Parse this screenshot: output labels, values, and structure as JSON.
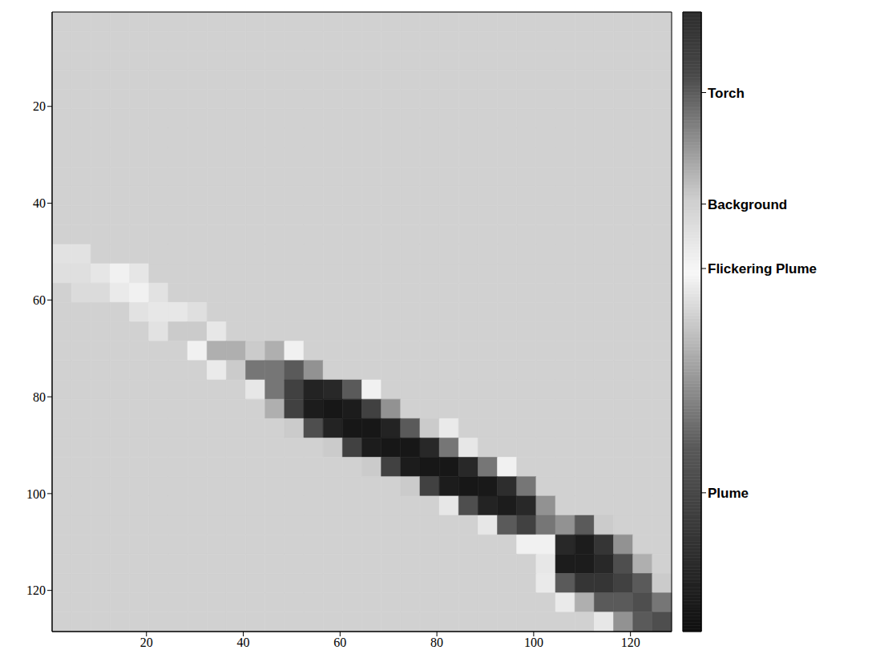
{
  "chart_data": {
    "type": "heatmap",
    "xlim": [
      0.5,
      128.5
    ],
    "ylim": [
      128.5,
      0.5
    ],
    "xticks": [
      20,
      40,
      60,
      80,
      100,
      120
    ],
    "yticks": [
      20,
      40,
      60,
      80,
      100,
      120
    ],
    "x_bins": [
      0.5,
      4.5,
      8.5,
      12.5,
      16.5,
      20.5,
      24.5,
      28.5,
      32.5,
      36.5,
      40.5,
      44.5,
      48.5,
      52.5,
      56.5,
      60.5,
      64.5,
      68.5,
      72.5,
      76.5,
      80.5,
      84.5,
      88.5,
      92.5,
      96.5,
      100.5,
      104.5,
      108.5,
      112.5,
      116.5,
      120.5,
      124.5,
      128.5
    ],
    "y_bins": [
      0.5,
      4.5,
      8.5,
      12.5,
      16.5,
      20.5,
      24.5,
      28.5,
      32.5,
      36.5,
      40.5,
      44.5,
      48.5,
      52.5,
      56.5,
      60.5,
      64.5,
      68.5,
      72.5,
      76.5,
      80.5,
      84.5,
      88.5,
      92.5,
      96.5,
      100.5,
      104.5,
      108.5,
      112.5,
      116.5,
      120.5,
      124.5,
      128.5
    ],
    "cells": [
      [
        0.69,
        0.69,
        0.69,
        0.69,
        0.69,
        0.69,
        0.69,
        0.69,
        0.69,
        0.69,
        0.69,
        0.69,
        0.69,
        0.69,
        0.69,
        0.69,
        0.69,
        0.69,
        0.69,
        0.69,
        0.69,
        0.69,
        0.69,
        0.69,
        0.69,
        0.69,
        0.69,
        0.69,
        0.69,
        0.69,
        0.69,
        0.69
      ],
      [
        0.69,
        0.69,
        0.69,
        0.69,
        0.69,
        0.69,
        0.69,
        0.69,
        0.69,
        0.69,
        0.69,
        0.69,
        0.69,
        0.69,
        0.69,
        0.69,
        0.69,
        0.69,
        0.69,
        0.69,
        0.69,
        0.69,
        0.69,
        0.69,
        0.69,
        0.69,
        0.69,
        0.69,
        0.69,
        0.69,
        0.69,
        0.69
      ],
      [
        0.69,
        0.69,
        0.69,
        0.69,
        0.69,
        0.69,
        0.69,
        0.69,
        0.69,
        0.69,
        0.69,
        0.69,
        0.69,
        0.69,
        0.69,
        0.69,
        0.69,
        0.69,
        0.69,
        0.69,
        0.69,
        0.69,
        0.69,
        0.69,
        0.69,
        0.69,
        0.69,
        0.69,
        0.69,
        0.69,
        0.69,
        0.69
      ],
      [
        0.69,
        0.69,
        0.69,
        0.69,
        0.69,
        0.69,
        0.69,
        0.69,
        0.69,
        0.69,
        0.69,
        0.69,
        0.69,
        0.69,
        0.69,
        0.69,
        0.69,
        0.69,
        0.69,
        0.69,
        0.69,
        0.69,
        0.69,
        0.69,
        0.69,
        0.69,
        0.69,
        0.69,
        0.69,
        0.69,
        0.69,
        0.69
      ],
      [
        0.69,
        0.69,
        0.69,
        0.69,
        0.69,
        0.69,
        0.69,
        0.69,
        0.69,
        0.69,
        0.69,
        0.69,
        0.69,
        0.69,
        0.69,
        0.69,
        0.69,
        0.69,
        0.69,
        0.69,
        0.69,
        0.69,
        0.69,
        0.69,
        0.69,
        0.69,
        0.69,
        0.69,
        0.69,
        0.69,
        0.69,
        0.69
      ],
      [
        0.69,
        0.69,
        0.69,
        0.69,
        0.69,
        0.69,
        0.69,
        0.69,
        0.69,
        0.69,
        0.69,
        0.69,
        0.69,
        0.69,
        0.69,
        0.69,
        0.69,
        0.69,
        0.69,
        0.69,
        0.69,
        0.69,
        0.69,
        0.69,
        0.69,
        0.69,
        0.69,
        0.69,
        0.69,
        0.69,
        0.69,
        0.69
      ],
      [
        0.69,
        0.69,
        0.69,
        0.69,
        0.69,
        0.69,
        0.69,
        0.69,
        0.69,
        0.69,
        0.69,
        0.69,
        0.69,
        0.69,
        0.69,
        0.69,
        0.69,
        0.69,
        0.69,
        0.69,
        0.69,
        0.69,
        0.69,
        0.69,
        0.69,
        0.69,
        0.69,
        0.69,
        0.69,
        0.69,
        0.69,
        0.69
      ],
      [
        0.69,
        0.69,
        0.69,
        0.69,
        0.69,
        0.69,
        0.69,
        0.69,
        0.69,
        0.69,
        0.69,
        0.69,
        0.69,
        0.69,
        0.69,
        0.69,
        0.69,
        0.69,
        0.69,
        0.69,
        0.69,
        0.69,
        0.69,
        0.69,
        0.69,
        0.69,
        0.69,
        0.69,
        0.69,
        0.69,
        0.69,
        0.69
      ],
      [
        0.69,
        0.69,
        0.69,
        0.69,
        0.69,
        0.69,
        0.69,
        0.69,
        0.69,
        0.69,
        0.69,
        0.69,
        0.69,
        0.69,
        0.69,
        0.69,
        0.69,
        0.69,
        0.69,
        0.69,
        0.69,
        0.69,
        0.69,
        0.69,
        0.69,
        0.69,
        0.69,
        0.69,
        0.69,
        0.69,
        0.69,
        0.69
      ],
      [
        0.69,
        0.69,
        0.69,
        0.69,
        0.69,
        0.69,
        0.69,
        0.69,
        0.69,
        0.69,
        0.69,
        0.69,
        0.69,
        0.69,
        0.69,
        0.69,
        0.69,
        0.69,
        0.69,
        0.69,
        0.69,
        0.69,
        0.69,
        0.69,
        0.69,
        0.69,
        0.69,
        0.69,
        0.69,
        0.69,
        0.69,
        0.69
      ],
      [
        0.69,
        0.69,
        0.69,
        0.69,
        0.69,
        0.69,
        0.69,
        0.69,
        0.69,
        0.69,
        0.69,
        0.69,
        0.69,
        0.69,
        0.69,
        0.69,
        0.69,
        0.69,
        0.69,
        0.69,
        0.69,
        0.69,
        0.69,
        0.69,
        0.69,
        0.69,
        0.69,
        0.69,
        0.69,
        0.69,
        0.69,
        0.69
      ],
      [
        0.69,
        0.69,
        0.69,
        0.69,
        0.69,
        0.69,
        0.69,
        0.69,
        0.69,
        0.69,
        0.69,
        0.69,
        0.69,
        0.69,
        0.69,
        0.69,
        0.69,
        0.69,
        0.69,
        0.69,
        0.69,
        0.69,
        0.69,
        0.69,
        0.69,
        0.69,
        0.69,
        0.69,
        0.69,
        0.69,
        0.69,
        0.69
      ],
      [
        0.64,
        0.64,
        0.69,
        0.69,
        0.69,
        0.69,
        0.69,
        0.69,
        0.69,
        0.69,
        0.69,
        0.69,
        0.69,
        0.69,
        0.69,
        0.69,
        0.69,
        0.69,
        0.69,
        0.69,
        0.69,
        0.69,
        0.69,
        0.69,
        0.69,
        0.69,
        0.69,
        0.69,
        0.69,
        0.69,
        0.69,
        0.69
      ],
      [
        0.65,
        0.65,
        0.63,
        0.6,
        0.63,
        0.69,
        0.69,
        0.69,
        0.69,
        0.69,
        0.69,
        0.69,
        0.69,
        0.69,
        0.69,
        0.69,
        0.69,
        0.69,
        0.69,
        0.69,
        0.69,
        0.69,
        0.69,
        0.69,
        0.69,
        0.69,
        0.69,
        0.69,
        0.69,
        0.69,
        0.69,
        0.69
      ],
      [
        0.69,
        0.66,
        0.66,
        0.62,
        0.6,
        0.64,
        0.69,
        0.69,
        0.69,
        0.69,
        0.69,
        0.69,
        0.69,
        0.69,
        0.69,
        0.69,
        0.69,
        0.69,
        0.69,
        0.69,
        0.69,
        0.69,
        0.69,
        0.69,
        0.69,
        0.69,
        0.69,
        0.69,
        0.69,
        0.69,
        0.69,
        0.69
      ],
      [
        0.69,
        0.69,
        0.69,
        0.69,
        0.64,
        0.55,
        0.55,
        0.65,
        0.69,
        0.69,
        0.69,
        0.69,
        0.69,
        0.69,
        0.69,
        0.69,
        0.69,
        0.69,
        0.69,
        0.69,
        0.69,
        0.69,
        0.69,
        0.69,
        0.69,
        0.69,
        0.69,
        0.69,
        0.69,
        0.69,
        0.69,
        0.69
      ],
      [
        0.69,
        0.69,
        0.69,
        0.69,
        0.69,
        0.64,
        0.5,
        0.5,
        0.55,
        0.69,
        0.69,
        0.69,
        0.69,
        0.69,
        0.69,
        0.69,
        0.69,
        0.69,
        0.69,
        0.69,
        0.69,
        0.69,
        0.69,
        0.69,
        0.69,
        0.69,
        0.69,
        0.69,
        0.69,
        0.69,
        0.69,
        0.69
      ],
      [
        0.69,
        0.69,
        0.69,
        0.69,
        0.69,
        0.69,
        0.69,
        0.6,
        0.45,
        0.45,
        0.5,
        0.45,
        0.6,
        0.69,
        0.69,
        0.69,
        0.69,
        0.69,
        0.69,
        0.69,
        0.69,
        0.69,
        0.69,
        0.69,
        0.69,
        0.69,
        0.69,
        0.69,
        0.69,
        0.69,
        0.69,
        0.69
      ],
      [
        0.69,
        0.69,
        0.69,
        0.69,
        0.69,
        0.69,
        0.69,
        0.69,
        0.62,
        0.5,
        0.35,
        0.35,
        0.3,
        0.4,
        0.69,
        0.69,
        0.69,
        0.69,
        0.69,
        0.69,
        0.69,
        0.69,
        0.69,
        0.69,
        0.69,
        0.69,
        0.69,
        0.69,
        0.69,
        0.69,
        0.69,
        0.69
      ],
      [
        0.69,
        0.69,
        0.69,
        0.69,
        0.69,
        0.69,
        0.69,
        0.69,
        0.69,
        0.69,
        0.55,
        0.35,
        0.2,
        0.08,
        0.1,
        0.3,
        0.6,
        0.69,
        0.69,
        0.69,
        0.69,
        0.69,
        0.69,
        0.69,
        0.69,
        0.69,
        0.69,
        0.69,
        0.69,
        0.69,
        0.69,
        0.69
      ],
      [
        0.69,
        0.69,
        0.69,
        0.69,
        0.69,
        0.69,
        0.69,
        0.69,
        0.69,
        0.69,
        0.69,
        0.45,
        0.2,
        0.05,
        0.03,
        0.05,
        0.2,
        0.4,
        0.69,
        0.69,
        0.69,
        0.69,
        0.69,
        0.69,
        0.69,
        0.69,
        0.69,
        0.69,
        0.69,
        0.69,
        0.69,
        0.69
      ],
      [
        0.69,
        0.69,
        0.69,
        0.69,
        0.69,
        0.69,
        0.69,
        0.69,
        0.69,
        0.69,
        0.69,
        0.69,
        0.5,
        0.25,
        0.08,
        0.03,
        0.03,
        0.08,
        0.3,
        0.5,
        0.62,
        0.69,
        0.69,
        0.69,
        0.69,
        0.69,
        0.69,
        0.69,
        0.69,
        0.69,
        0.69,
        0.69
      ],
      [
        0.69,
        0.69,
        0.69,
        0.69,
        0.69,
        0.69,
        0.69,
        0.69,
        0.69,
        0.69,
        0.69,
        0.69,
        0.69,
        0.69,
        0.5,
        0.2,
        0.05,
        0.03,
        0.03,
        0.1,
        0.35,
        0.55,
        0.69,
        0.69,
        0.69,
        0.69,
        0.69,
        0.69,
        0.69,
        0.69,
        0.69,
        0.69
      ],
      [
        0.69,
        0.69,
        0.69,
        0.69,
        0.69,
        0.69,
        0.69,
        0.69,
        0.69,
        0.69,
        0.69,
        0.69,
        0.69,
        0.69,
        0.69,
        0.69,
        0.5,
        0.2,
        0.05,
        0.03,
        0.03,
        0.1,
        0.35,
        0.6,
        0.69,
        0.69,
        0.69,
        0.69,
        0.69,
        0.69,
        0.69,
        0.69
      ],
      [
        0.69,
        0.69,
        0.69,
        0.69,
        0.69,
        0.69,
        0.69,
        0.69,
        0.69,
        0.69,
        0.69,
        0.69,
        0.69,
        0.69,
        0.69,
        0.69,
        0.69,
        0.69,
        0.5,
        0.2,
        0.05,
        0.03,
        0.04,
        0.12,
        0.35,
        0.69,
        0.69,
        0.69,
        0.69,
        0.69,
        0.69,
        0.69
      ],
      [
        0.69,
        0.69,
        0.69,
        0.69,
        0.69,
        0.69,
        0.69,
        0.69,
        0.69,
        0.69,
        0.69,
        0.69,
        0.69,
        0.69,
        0.69,
        0.69,
        0.69,
        0.69,
        0.69,
        0.69,
        0.55,
        0.25,
        0.08,
        0.05,
        0.1,
        0.4,
        0.69,
        0.69,
        0.69,
        0.69,
        0.69,
        0.69
      ],
      [
        0.69,
        0.69,
        0.69,
        0.69,
        0.69,
        0.69,
        0.69,
        0.69,
        0.69,
        0.69,
        0.69,
        0.69,
        0.69,
        0.69,
        0.69,
        0.69,
        0.69,
        0.69,
        0.69,
        0.69,
        0.69,
        0.69,
        0.55,
        0.3,
        0.2,
        0.35,
        0.4,
        0.3,
        0.5,
        0.69,
        0.69,
        0.69
      ],
      [
        0.69,
        0.69,
        0.69,
        0.69,
        0.69,
        0.69,
        0.69,
        0.69,
        0.69,
        0.69,
        0.69,
        0.69,
        0.69,
        0.69,
        0.69,
        0.69,
        0.69,
        0.69,
        0.69,
        0.69,
        0.69,
        0.69,
        0.69,
        0.69,
        0.6,
        0.6,
        0.1,
        0.05,
        0.15,
        0.4,
        0.69,
        0.69
      ],
      [
        0.69,
        0.69,
        0.69,
        0.69,
        0.69,
        0.69,
        0.69,
        0.69,
        0.69,
        0.69,
        0.69,
        0.69,
        0.69,
        0.69,
        0.69,
        0.69,
        0.69,
        0.69,
        0.69,
        0.69,
        0.69,
        0.69,
        0.69,
        0.69,
        0.69,
        0.55,
        0.05,
        0.05,
        0.1,
        0.25,
        0.45,
        0.69
      ],
      [
        0.69,
        0.69,
        0.69,
        0.69,
        0.69,
        0.69,
        0.69,
        0.69,
        0.69,
        0.69,
        0.69,
        0.69,
        0.69,
        0.69,
        0.69,
        0.69,
        0.69,
        0.69,
        0.69,
        0.69,
        0.69,
        0.69,
        0.69,
        0.69,
        0.69,
        0.62,
        0.3,
        0.15,
        0.15,
        0.2,
        0.3,
        0.5
      ],
      [
        0.69,
        0.69,
        0.69,
        0.69,
        0.69,
        0.69,
        0.69,
        0.69,
        0.69,
        0.69,
        0.69,
        0.69,
        0.69,
        0.69,
        0.69,
        0.69,
        0.69,
        0.69,
        0.69,
        0.69,
        0.69,
        0.69,
        0.69,
        0.69,
        0.69,
        0.69,
        0.62,
        0.45,
        0.3,
        0.3,
        0.25,
        0.35
      ],
      [
        0.69,
        0.69,
        0.69,
        0.69,
        0.69,
        0.69,
        0.69,
        0.69,
        0.69,
        0.69,
        0.69,
        0.69,
        0.69,
        0.69,
        0.69,
        0.69,
        0.69,
        0.69,
        0.69,
        0.69,
        0.69,
        0.69,
        0.69,
        0.69,
        0.69,
        0.69,
        0.69,
        0.69,
        0.55,
        0.4,
        0.3,
        0.25
      ]
    ],
    "colorbar": {
      "range": [
        0,
        1
      ],
      "ticks": [
        {
          "value": 0.87,
          "label": "Torch"
        },
        {
          "value": 0.69,
          "label": "Background"
        },
        {
          "value": 0.586,
          "label": "Flickering Plume"
        },
        {
          "value": 0.224,
          "label": "Plume"
        }
      ]
    }
  }
}
